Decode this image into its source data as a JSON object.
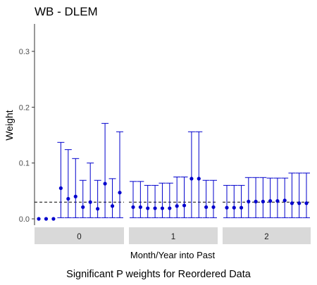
{
  "chart_data": {
    "type": "scatter",
    "title": "WB - DLEM",
    "xlabel": "Month/Year into Past",
    "ylabel": "Weight",
    "caption": "Significant P weights for Reordered Data",
    "ylim": [
      0,
      0.35
    ],
    "yticks": [
      0.0,
      0.1,
      0.2,
      0.3
    ],
    "ytick_labels": [
      "0.0",
      "0.1",
      "0.2",
      "0.3"
    ],
    "reference_line_y": 0.03,
    "grid": false,
    "facets": [
      {
        "label": "0",
        "points": [
          {
            "y": 0.0,
            "lo": 0.0,
            "hi": 0.0
          },
          {
            "y": 0.0,
            "lo": 0.0,
            "hi": 0.0
          },
          {
            "y": 0.0,
            "lo": 0.0,
            "hi": 0.0
          },
          {
            "y": 0.055,
            "lo": 0.002,
            "hi": 0.137
          },
          {
            "y": 0.036,
            "lo": 0.002,
            "hi": 0.124
          },
          {
            "y": 0.04,
            "lo": 0.002,
            "hi": 0.108
          },
          {
            "y": 0.021,
            "lo": 0.002,
            "hi": 0.069
          },
          {
            "y": 0.03,
            "lo": 0.002,
            "hi": 0.1
          },
          {
            "y": 0.018,
            "lo": 0.002,
            "hi": 0.069
          },
          {
            "y": 0.063,
            "lo": 0.002,
            "hi": 0.171
          },
          {
            "y": 0.023,
            "lo": 0.002,
            "hi": 0.072
          },
          {
            "y": 0.047,
            "lo": 0.002,
            "hi": 0.156
          }
        ]
      },
      {
        "label": "1",
        "points": [
          {
            "y": 0.021,
            "lo": 0.002,
            "hi": 0.067
          },
          {
            "y": 0.021,
            "lo": 0.002,
            "hi": 0.067
          },
          {
            "y": 0.019,
            "lo": 0.002,
            "hi": 0.06
          },
          {
            "y": 0.019,
            "lo": 0.002,
            "hi": 0.06
          },
          {
            "y": 0.019,
            "lo": 0.002,
            "hi": 0.064
          },
          {
            "y": 0.019,
            "lo": 0.002,
            "hi": 0.064
          },
          {
            "y": 0.023,
            "lo": 0.002,
            "hi": 0.075
          },
          {
            "y": 0.024,
            "lo": 0.002,
            "hi": 0.075
          },
          {
            "y": 0.072,
            "lo": 0.002,
            "hi": 0.156
          },
          {
            "y": 0.072,
            "lo": 0.002,
            "hi": 0.156
          },
          {
            "y": 0.021,
            "lo": 0.002,
            "hi": 0.069
          },
          {
            "y": 0.021,
            "lo": 0.002,
            "hi": 0.069
          }
        ]
      },
      {
        "label": "2",
        "points": [
          {
            "y": 0.02,
            "lo": 0.002,
            "hi": 0.06
          },
          {
            "y": 0.02,
            "lo": 0.002,
            "hi": 0.06
          },
          {
            "y": 0.02,
            "lo": 0.002,
            "hi": 0.06
          },
          {
            "y": 0.031,
            "lo": 0.002,
            "hi": 0.074
          },
          {
            "y": 0.031,
            "lo": 0.002,
            "hi": 0.074
          },
          {
            "y": 0.031,
            "lo": 0.002,
            "hi": 0.074
          },
          {
            "y": 0.032,
            "lo": 0.002,
            "hi": 0.073
          },
          {
            "y": 0.032,
            "lo": 0.002,
            "hi": 0.073
          },
          {
            "y": 0.033,
            "lo": 0.002,
            "hi": 0.073
          },
          {
            "y": 0.028,
            "lo": 0.002,
            "hi": 0.082
          },
          {
            "y": 0.028,
            "lo": 0.002,
            "hi": 0.082
          },
          {
            "y": 0.028,
            "lo": 0.002,
            "hi": 0.082
          }
        ]
      }
    ],
    "colors": {
      "points": "#0000cd",
      "errorbars": "#0000cd",
      "strip_fill": "#d9d9d9",
      "reference_line": "#000000",
      "axis": "#333333",
      "text": "#000000",
      "tick_text": "#4d4d4d"
    }
  }
}
